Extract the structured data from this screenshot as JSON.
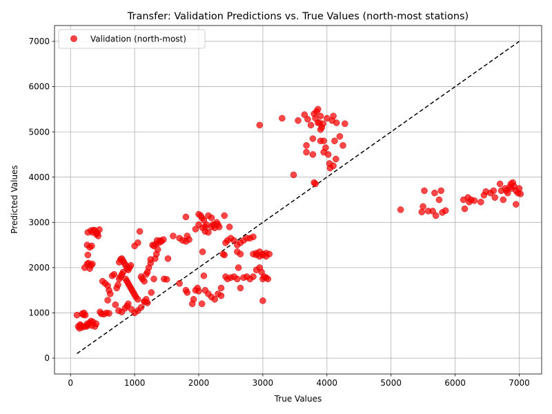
{
  "chart_data": {
    "type": "scatter",
    "title": "Transfer: Validation Predictions vs. True Values (north-most stations)",
    "xlabel": "True Values",
    "ylabel": "Predicted Values",
    "xlim": [
      -250,
      7350
    ],
    "ylim": [
      -350,
      7350
    ],
    "xticks": [
      0,
      1000,
      2000,
      3000,
      4000,
      5000,
      6000,
      7000
    ],
    "yticks": [
      0,
      1000,
      2000,
      3000,
      4000,
      5000,
      6000,
      7000
    ],
    "grid": true,
    "legend": {
      "position": "top-left",
      "entries": [
        "Validation (north-most)"
      ]
    },
    "colors": {
      "points": "#ff0000",
      "points_edge": "#cc0000",
      "reference": "#000000",
      "grid": "#b0b0b0"
    },
    "reference_line": {
      "style": "dashed",
      "x": [
        100,
        7000
      ],
      "y": [
        100,
        7000
      ]
    },
    "series": [
      {
        "name": "Validation (north-most)",
        "points": [
          [
            100,
            950
          ],
          [
            120,
            700
          ],
          [
            140,
            660
          ],
          [
            160,
            720
          ],
          [
            180,
            680
          ],
          [
            200,
            960
          ],
          [
            210,
            1000
          ],
          [
            230,
            950
          ],
          [
            250,
            700
          ],
          [
            270,
            730
          ],
          [
            300,
            780
          ],
          [
            320,
            820
          ],
          [
            350,
            800
          ],
          [
            380,
            700
          ],
          [
            400,
            760
          ],
          [
            180,
            980
          ],
          [
            150,
            740
          ],
          [
            260,
            760
          ],
          [
            330,
            720
          ],
          [
            220,
            700
          ],
          [
            220,
            2000
          ],
          [
            260,
            2080
          ],
          [
            280,
            2100
          ],
          [
            300,
            1980
          ],
          [
            320,
            2050
          ],
          [
            340,
            2080
          ],
          [
            270,
            2280
          ],
          [
            260,
            2500
          ],
          [
            300,
            2450
          ],
          [
            330,
            2480
          ],
          [
            270,
            2780
          ],
          [
            320,
            2820
          ],
          [
            360,
            2830
          ],
          [
            400,
            2780
          ],
          [
            430,
            2700
          ],
          [
            450,
            2840
          ],
          [
            400,
            2740
          ],
          [
            380,
            2820
          ],
          [
            420,
            2760
          ],
          [
            340,
            2780
          ],
          [
            460,
            1020
          ],
          [
            480,
            980
          ],
          [
            520,
            970
          ],
          [
            560,
            1000
          ],
          [
            600,
            990
          ],
          [
            500,
            1700
          ],
          [
            540,
            1650
          ],
          [
            580,
            1600
          ],
          [
            600,
            1500
          ],
          [
            620,
            1420
          ],
          [
            580,
            1280
          ],
          [
            650,
            1820
          ],
          [
            680,
            1850
          ],
          [
            700,
            1180
          ],
          [
            720,
            1550
          ],
          [
            740,
            1620
          ],
          [
            760,
            1750
          ],
          [
            780,
            1800
          ],
          [
            800,
            1850
          ],
          [
            820,
            1900
          ],
          [
            780,
            2180
          ],
          [
            800,
            2200
          ],
          [
            820,
            2150
          ],
          [
            840,
            2100
          ],
          [
            760,
            2120
          ],
          [
            860,
            2050
          ],
          [
            880,
            1980
          ],
          [
            900,
            1950
          ],
          [
            920,
            2000
          ],
          [
            940,
            2050
          ],
          [
            860,
            1750
          ],
          [
            880,
            1700
          ],
          [
            900,
            1650
          ],
          [
            920,
            1600
          ],
          [
            940,
            1550
          ],
          [
            960,
            1500
          ],
          [
            980,
            1450
          ],
          [
            1000,
            1400
          ],
          [
            1020,
            1350
          ],
          [
            1050,
            1300
          ],
          [
            750,
            1050
          ],
          [
            800,
            1020
          ],
          [
            850,
            1100
          ],
          [
            880,
            1150
          ],
          [
            900,
            1200
          ],
          [
            950,
            1080
          ],
          [
            1000,
            1000
          ],
          [
            1050,
            1050
          ],
          [
            1100,
            1120
          ],
          [
            1150,
            1250
          ],
          [
            1000,
            2480
          ],
          [
            1050,
            2550
          ],
          [
            1080,
            2800
          ],
          [
            1100,
            1800
          ],
          [
            1120,
            1750
          ],
          [
            1150,
            1700
          ],
          [
            1180,
            1850
          ],
          [
            1200,
            1900
          ],
          [
            1220,
            2000
          ],
          [
            1250,
            2100
          ],
          [
            1150,
            1250
          ],
          [
            1180,
            1300
          ],
          [
            1200,
            1220
          ],
          [
            1260,
            1450
          ],
          [
            1300,
            1750
          ],
          [
            1320,
            2200
          ],
          [
            1340,
            2300
          ],
          [
            1360,
            2400
          ],
          [
            1380,
            2550
          ],
          [
            1400,
            2600
          ],
          [
            1280,
            2500
          ],
          [
            1300,
            2480
          ],
          [
            1330,
            2520
          ],
          [
            1350,
            2600
          ],
          [
            1420,
            2580
          ],
          [
            1450,
            2620
          ],
          [
            1460,
            1750
          ],
          [
            1500,
            1740
          ],
          [
            1520,
            2200
          ],
          [
            1250,
            2180
          ],
          [
            1600,
            2700
          ],
          [
            1700,
            2650
          ],
          [
            1750,
            2600
          ],
          [
            1800,
            2580
          ],
          [
            1820,
            2700
          ],
          [
            1800,
            3120
          ],
          [
            1850,
            2620
          ],
          [
            1700,
            1650
          ],
          [
            1800,
            1500
          ],
          [
            1820,
            1450
          ],
          [
            1900,
            1200
          ],
          [
            1920,
            1300
          ],
          [
            1950,
            1500
          ],
          [
            1980,
            1550
          ],
          [
            2000,
            1480
          ],
          [
            2050,
            1200
          ],
          [
            2060,
            2350
          ],
          [
            2080,
            1820
          ],
          [
            2100,
            1500
          ],
          [
            2150,
            1420
          ],
          [
            1950,
            2850
          ],
          [
            2000,
            2950
          ],
          [
            2050,
            3100
          ],
          [
            2080,
            3050
          ],
          [
            2100,
            2900
          ],
          [
            2120,
            2950
          ],
          [
            2150,
            3150
          ],
          [
            2200,
            3100
          ],
          [
            2220,
            2950
          ],
          [
            2250,
            2880
          ],
          [
            2000,
            3180
          ],
          [
            2030,
            3150
          ],
          [
            2060,
            2880
          ],
          [
            2100,
            2800
          ],
          [
            2150,
            2780
          ],
          [
            2200,
            2900
          ],
          [
            2250,
            2950
          ],
          [
            2280,
            3000
          ],
          [
            2300,
            2950
          ],
          [
            2320,
            2900
          ],
          [
            2200,
            1350
          ],
          [
            2250,
            1300
          ],
          [
            2300,
            1420
          ],
          [
            2350,
            1380
          ],
          [
            2350,
            1550
          ],
          [
            2380,
            2300
          ],
          [
            2400,
            2280
          ],
          [
            2420,
            2550
          ],
          [
            2450,
            2600
          ],
          [
            2480,
            2900
          ],
          [
            2400,
            3150
          ],
          [
            2420,
            1800
          ],
          [
            2450,
            1750
          ],
          [
            2500,
            1780
          ],
          [
            2550,
            1800
          ],
          [
            2600,
            1750
          ],
          [
            2620,
            2000
          ],
          [
            2650,
            1550
          ],
          [
            2700,
            1780
          ],
          [
            2750,
            1800
          ],
          [
            2500,
            2650
          ],
          [
            2550,
            2600
          ],
          [
            2600,
            2500
          ],
          [
            2650,
            2550
          ],
          [
            2700,
            2600
          ],
          [
            2750,
            2650
          ],
          [
            2800,
            2650
          ],
          [
            2850,
            2680
          ],
          [
            2600,
            2350
          ],
          [
            2650,
            2300
          ],
          [
            2800,
            1750
          ],
          [
            2850,
            1800
          ],
          [
            2900,
            1950
          ],
          [
            2950,
            2000
          ],
          [
            2980,
            1900
          ],
          [
            3000,
            1750
          ],
          [
            3020,
            1800
          ],
          [
            3050,
            1780
          ],
          [
            3080,
            1750
          ],
          [
            3000,
            1270
          ],
          [
            2850,
            2300
          ],
          [
            2900,
            2280
          ],
          [
            2950,
            2250
          ],
          [
            3000,
            2300
          ],
          [
            3050,
            2320
          ],
          [
            3100,
            2300
          ],
          [
            2900,
            2320
          ],
          [
            2950,
            2350
          ],
          [
            3000,
            2280
          ],
          [
            3050,
            2250
          ],
          [
            2950,
            5150
          ],
          [
            3300,
            5300
          ],
          [
            3480,
            4050
          ],
          [
            3550,
            5250
          ],
          [
            3650,
            5380
          ],
          [
            3680,
            4700
          ],
          [
            3680,
            4550
          ],
          [
            3700,
            5280
          ],
          [
            3750,
            5150
          ],
          [
            3780,
            4850
          ],
          [
            3780,
            4500
          ],
          [
            3800,
            3880
          ],
          [
            3820,
            3850
          ],
          [
            3800,
            5400
          ],
          [
            3820,
            5300
          ],
          [
            3840,
            5450
          ],
          [
            3860,
            5500
          ],
          [
            3880,
            5200
          ],
          [
            3900,
            5350
          ],
          [
            3920,
            5100
          ],
          [
            3900,
            4800
          ],
          [
            3950,
            4800
          ],
          [
            3950,
            4550
          ],
          [
            3980,
            4650
          ],
          [
            4000,
            5300
          ],
          [
            4020,
            4500
          ],
          [
            4040,
            4300
          ],
          [
            4050,
            4200
          ],
          [
            4080,
            5250
          ],
          [
            4100,
            4250
          ],
          [
            4100,
            5350
          ],
          [
            4120,
            4800
          ],
          [
            4140,
            4400
          ],
          [
            4150,
            5200
          ],
          [
            4200,
            4900
          ],
          [
            4250,
            4700
          ],
          [
            4280,
            5180
          ],
          [
            3860,
            5200
          ],
          [
            3900,
            5050
          ],
          [
            3940,
            5180
          ],
          [
            5150,
            3280
          ],
          [
            5480,
            3230
          ],
          [
            5500,
            3350
          ],
          [
            5520,
            3700
          ],
          [
            5580,
            3250
          ],
          [
            5650,
            3250
          ],
          [
            5680,
            3650
          ],
          [
            5700,
            3150
          ],
          [
            5750,
            3500
          ],
          [
            5780,
            3700
          ],
          [
            5800,
            3220
          ],
          [
            5850,
            3260
          ],
          [
            6130,
            3500
          ],
          [
            6150,
            3300
          ],
          [
            6200,
            3550
          ],
          [
            6220,
            3450
          ],
          [
            6250,
            3500
          ],
          [
            6300,
            3480
          ],
          [
            6400,
            3450
          ],
          [
            6450,
            3600
          ],
          [
            6480,
            3680
          ],
          [
            6550,
            3650
          ],
          [
            6600,
            3700
          ],
          [
            6620,
            3550
          ],
          [
            6700,
            3850
          ],
          [
            6720,
            3700
          ],
          [
            6750,
            3500
          ],
          [
            6780,
            3750
          ],
          [
            6800,
            3700
          ],
          [
            6820,
            3650
          ],
          [
            6850,
            3780
          ],
          [
            6880,
            3750
          ],
          [
            6900,
            3880
          ],
          [
            6920,
            3800
          ],
          [
            6950,
            3700
          ],
          [
            6950,
            3400
          ],
          [
            6980,
            3650
          ],
          [
            7000,
            3750
          ],
          [
            7020,
            3630
          ],
          [
            6870,
            3850
          ]
        ]
      }
    ]
  }
}
